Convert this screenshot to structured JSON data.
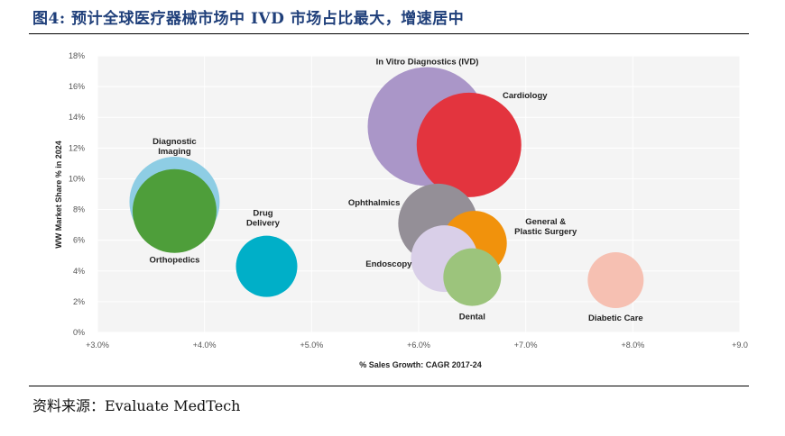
{
  "figure_title": "图4: 预计全球医疗器械市场中 IVD 市场占比最大，增速居中",
  "source": "资料来源：Evaluate MedTech",
  "chart_data": {
    "type": "scatter",
    "xlabel": "% Sales Growth: CAGR 2017-24",
    "ylabel": "WW Market Share % in 2024",
    "xlim": [
      3.0,
      9.0
    ],
    "ylim": [
      0,
      18
    ],
    "xticks": [
      "+3.0%",
      "+4.0%",
      "+5.0%",
      "+6.0%",
      "+7.0%",
      "+8.0%",
      "+9.0"
    ],
    "yticks": [
      "0%",
      "2%",
      "4%",
      "6%",
      "8%",
      "10%",
      "12%",
      "14%",
      "16%",
      "18%"
    ],
    "grid": true,
    "series": [
      {
        "name": "Diagnostic Imaging",
        "label": [
          "Diagnostic",
          "Imaging"
        ],
        "x": 3.72,
        "y": 8.5,
        "size": 1.0,
        "color": "#8ecde4"
      },
      {
        "name": "Orthopedics",
        "label": [
          "Orthopedics"
        ],
        "x": 3.72,
        "y": 7.9,
        "size": 0.93,
        "color": "#4e9e3a"
      },
      {
        "name": "Drug Delivery",
        "label": [
          "Drug",
          "Delivery"
        ],
        "x": 4.58,
        "y": 4.3,
        "size": 0.68,
        "color": "#00afc8"
      },
      {
        "name": "In Vitro Diagnostics (IVD)",
        "label": [
          "In Vitro Diagnostics (IVD)"
        ],
        "x": 6.08,
        "y": 13.4,
        "size": 1.32,
        "color": "#aa96c8"
      },
      {
        "name": "Cardiology",
        "label": [
          "Cardiology"
        ],
        "x": 6.47,
        "y": 12.2,
        "size": 1.16,
        "color": "#e3343e"
      },
      {
        "name": "Ophthalmics",
        "label": [
          "Ophthalmics"
        ],
        "x": 6.18,
        "y": 7.1,
        "size": 0.88,
        "color": "#948f97"
      },
      {
        "name": "General & Plastic Surgery",
        "label": [
          "General &",
          "Plastic Surgery"
        ],
        "x": 6.52,
        "y": 5.8,
        "size": 0.72,
        "color": "#f1920c"
      },
      {
        "name": "Endoscopy",
        "label": [
          "Endoscopy"
        ],
        "x": 6.24,
        "y": 4.8,
        "size": 0.74,
        "color": "#d9cfe8"
      },
      {
        "name": "Dental",
        "label": [
          "Dental"
        ],
        "x": 6.5,
        "y": 3.6,
        "size": 0.64,
        "color": "#9cc47c"
      },
      {
        "name": "Diabetic Care",
        "label": [
          "Diabetic Care"
        ],
        "x": 7.84,
        "y": 3.4,
        "size": 0.62,
        "color": "#f6c0b2"
      }
    ]
  }
}
